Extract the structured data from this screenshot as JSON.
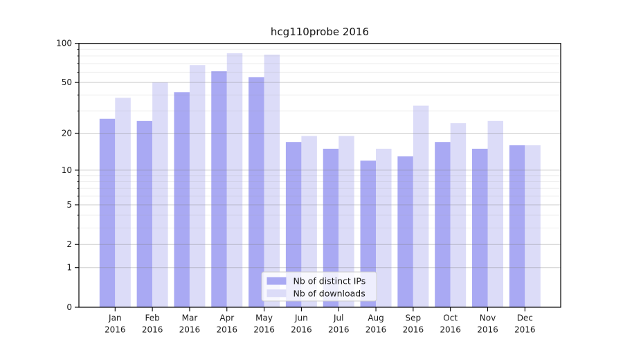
{
  "chart_data": {
    "type": "bar",
    "title": "hcg110probe 2016",
    "categories": [
      "Jan",
      "Feb",
      "Mar",
      "Apr",
      "May",
      "Jun",
      "Jul",
      "Aug",
      "Sep",
      "Oct",
      "Nov",
      "Dec"
    ],
    "category_sublabel": "2016",
    "series": [
      {
        "name": "Nb of distinct IPs",
        "color": "#a9a9f3",
        "values": [
          26,
          25,
          42,
          61,
          55,
          17,
          15,
          12,
          13,
          17,
          15,
          16
        ]
      },
      {
        "name": "Nb of downloads",
        "color": "#dcdcf8",
        "values": [
          38,
          50,
          68,
          84,
          82,
          19,
          19,
          15,
          33,
          24,
          25,
          16
        ]
      }
    ],
    "y_scale": "log1p",
    "ylim": [
      0,
      100
    ],
    "y_ticks": [
      0,
      1,
      2,
      5,
      10,
      20,
      50,
      100
    ],
    "y_minor_ticks": [
      3,
      4,
      6,
      7,
      8,
      9,
      30,
      40,
      60,
      70,
      80,
      90
    ],
    "grid": true,
    "legend_position": "lower-center"
  },
  "colors": {
    "background": "#ffffff",
    "spine": "#000000",
    "grid_major": "#808080",
    "grid_minor": "#9a9a9a",
    "tick_text": "#1a1a1a",
    "legend_border": "#cccccc"
  }
}
